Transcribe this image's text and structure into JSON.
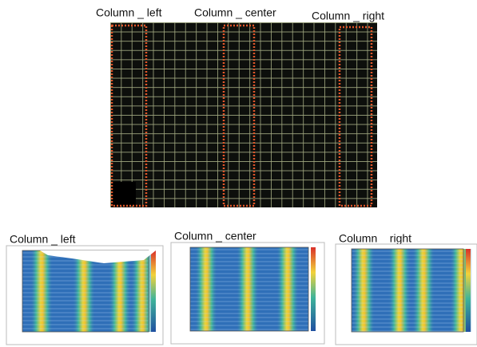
{
  "top_image": {
    "labels": [
      "Column _ left",
      "Column _ center",
      "Column _ right"
    ]
  },
  "panels": [
    {
      "title": "Column _ left"
    },
    {
      "title": "Column _ center"
    },
    {
      "title": "Column _ right"
    }
  ]
}
